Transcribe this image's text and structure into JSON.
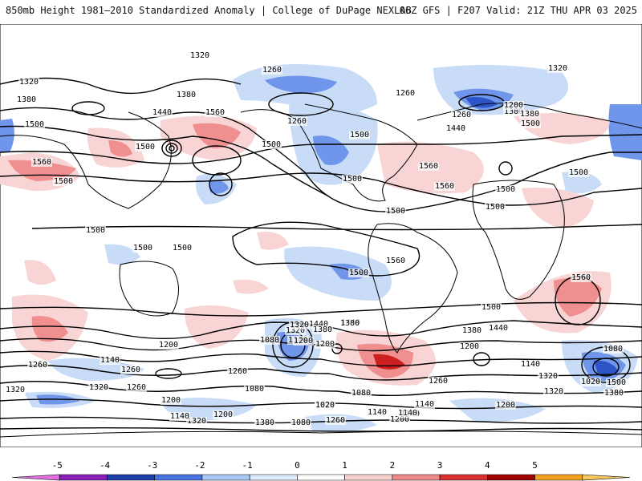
{
  "header": {
    "left": "850mb Height 1981–2010 Standardized Anomaly | College of DuPage NEXLAB",
    "right": "06Z GFS | F207 Valid: 21Z THU APR 03 2025"
  },
  "contour_labels": [
    "1320",
    "1260",
    "1320",
    "1380",
    "1380",
    "1440",
    "1500",
    "1560",
    "1500",
    "1500",
    "1260",
    "1260",
    "1260",
    "1320",
    "1380",
    "1200",
    "1380",
    "1440",
    "1500",
    "1500",
    "1560",
    "1560",
    "1500",
    "1500",
    "1500",
    "1500",
    "1500",
    "1500",
    "1500",
    "1560",
    "1500",
    "1500",
    "1560",
    "1500",
    "1440",
    "1380",
    "1320",
    "1200",
    "1140",
    "1080",
    "1200",
    "1140",
    "1260",
    "1440",
    "1380",
    "1200",
    "1080",
    "1140",
    "1260",
    "1320",
    "1260",
    "1200",
    "1080",
    "1020",
    "1140",
    "1200",
    "1380",
    "1320",
    "1500",
    "1440",
    "1380",
    "1320",
    "1200",
    "1140",
    "1260",
    "1080",
    "1020",
    "1140",
    "1200",
    "1320",
    "1380",
    "1260",
    "1080",
    "1140",
    "1320",
    "1260",
    "1140",
    "1200",
    "1320",
    "1020",
    "1560",
    "1500"
  ],
  "legend": {
    "ticks": [
      "-5",
      "-4",
      "-3",
      "-2",
      "-1",
      "0",
      "1",
      "2",
      "3",
      "4",
      "5"
    ],
    "colors": [
      "#e070e0",
      "#8a1fb8",
      "#1f3faa",
      "#4a72e0",
      "#a9c9f5",
      "#dceafb",
      "#ffffff",
      "#f8d0d0",
      "#ee8888",
      "#d83030",
      "#a00000",
      "#f2a020",
      "#f7c860"
    ]
  },
  "fills": {
    "neg_light": "#c8dcf8",
    "neg_mid": "#6f96ea",
    "neg_dark": "#2e55c8",
    "pos_light": "#f8d4d4",
    "pos_mid": "#ef8f8f",
    "pos_dark": "#cc1f1f"
  }
}
